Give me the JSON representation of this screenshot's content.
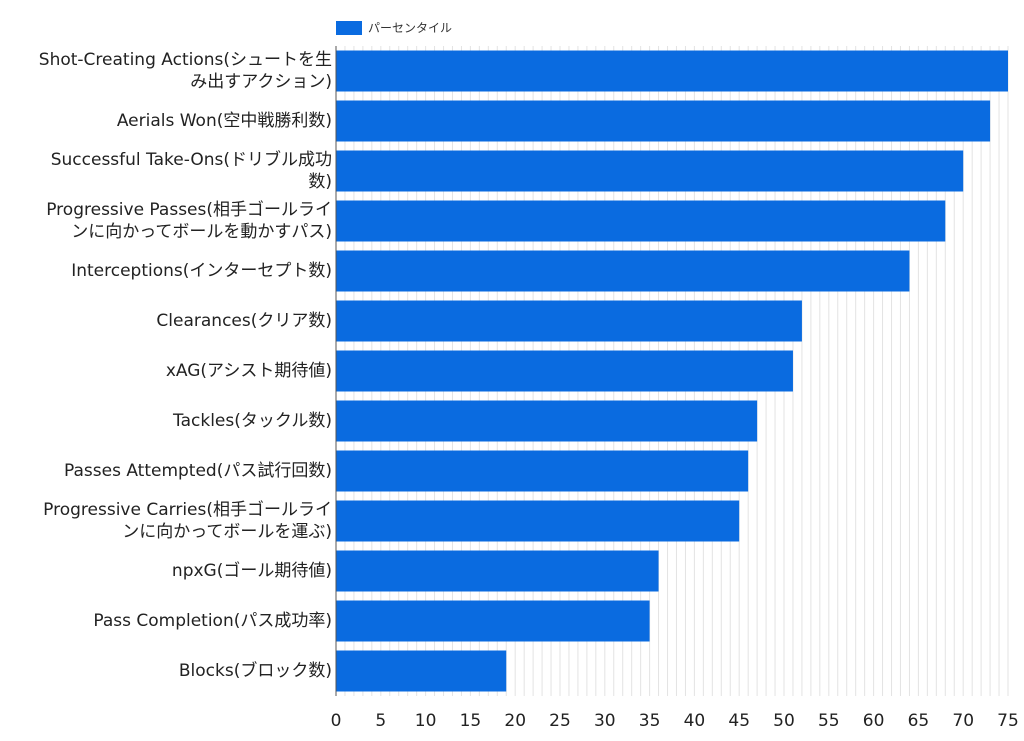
{
  "chart_data": {
    "type": "bar",
    "orientation": "horizontal",
    "categories": [
      "Shot-Creating Actions(シュートを生み出すアクション)",
      "Aerials Won(空中戦勝利数)",
      "Successful Take-Ons(ドリブル成功数)",
      "Progressive Passes(相手ゴールラインに向かってボールを動かすパス)",
      "Interceptions(インターセプト数)",
      "Clearances(クリア数)",
      "xAG(アシスト期待値)",
      "Tackles(タックル数)",
      "Passes Attempted(パス試行回数)",
      "Progressive Carries(相手ゴールラインに向かってボールを運ぶ)",
      "npxG(ゴール期待値)",
      "Pass Completion(パス成功率)",
      "Blocks(ブロック数)"
    ],
    "category_lines": [
      [
        "Shot-Creating Actions(シュートを生",
        "み出すアクション)"
      ],
      [
        "Aerials Won(空中戦勝利数)"
      ],
      [
        "Successful Take-Ons(ドリブル成功",
        "数)"
      ],
      [
        "Progressive Passes(相手ゴールライ",
        "ンに向かってボールを動かすパス)"
      ],
      [
        "Interceptions(インターセプト数)"
      ],
      [
        "Clearances(クリア数)"
      ],
      [
        "xAG(アシスト期待値)"
      ],
      [
        "Tackles(タックル数)"
      ],
      [
        "Passes Attempted(パス試行回数)"
      ],
      [
        "Progressive Carries(相手ゴールライ",
        "ンに向かってボールを運ぶ)"
      ],
      [
        "npxG(ゴール期待値)"
      ],
      [
        "Pass Completion(パス成功率)"
      ],
      [
        "Blocks(ブロック数)"
      ]
    ],
    "series": [
      {
        "name": "パーセンタイル",
        "color": "#0a6be0",
        "values": [
          75,
          73,
          70,
          68,
          64,
          52,
          51,
          47,
          46,
          45,
          36,
          35,
          19
        ]
      }
    ],
    "xlim": [
      0,
      75
    ],
    "xticks": [
      0,
      5,
      10,
      15,
      20,
      25,
      30,
      35,
      40,
      45,
      50,
      55,
      60,
      65,
      70,
      75
    ],
    "grid": true,
    "legend_position": "top-left"
  }
}
